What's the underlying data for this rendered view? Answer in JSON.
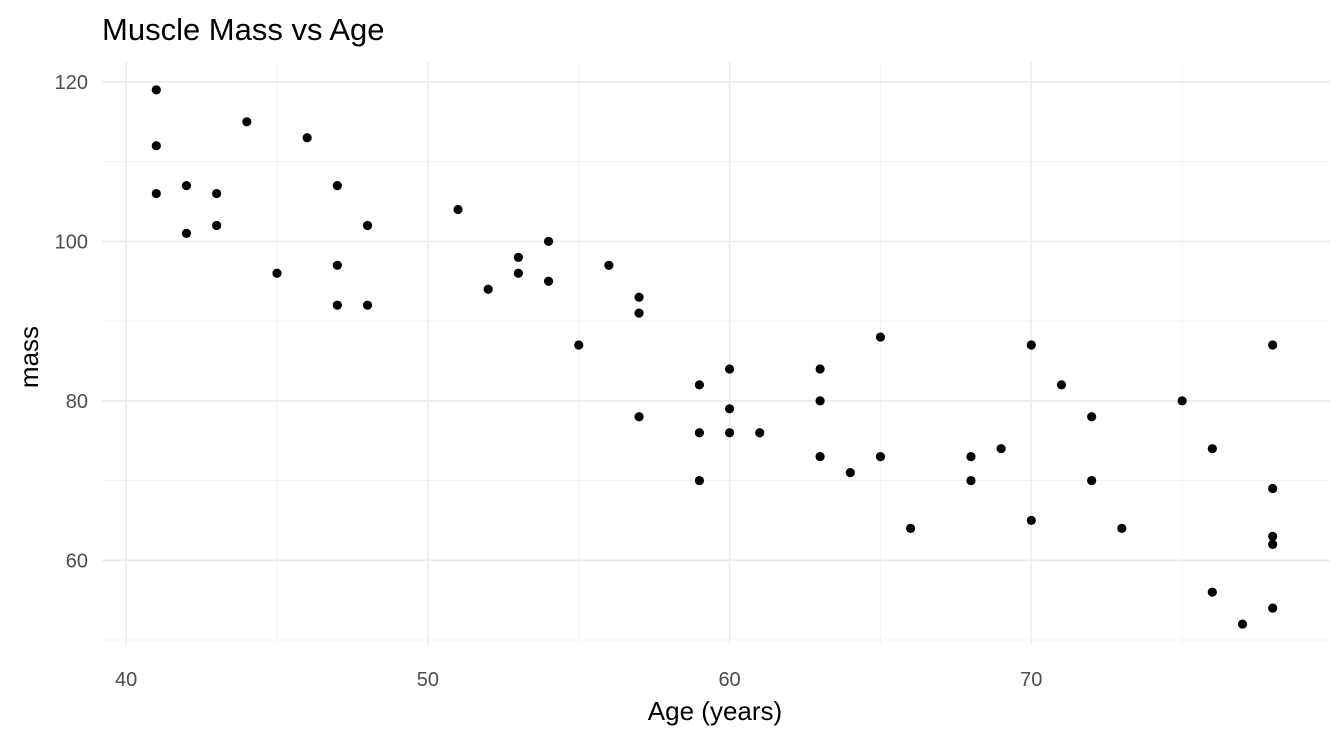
{
  "chart_data": {
    "type": "scatter",
    "title": "Muscle Mass vs Age",
    "xlabel": "Age (years)",
    "ylabel": "mass",
    "xlim": [
      39.2,
      79.9
    ],
    "ylim": [
      49.5,
      122.5
    ],
    "x_ticks": [
      40,
      50,
      60,
      70
    ],
    "x_minor": [
      45,
      55,
      65,
      75
    ],
    "y_ticks": [
      60,
      80,
      100,
      120
    ],
    "y_minor": [
      50,
      70,
      90,
      110
    ],
    "grid": true,
    "point_color": "#000000",
    "points": [
      {
        "x": 41,
        "y": 119
      },
      {
        "x": 41,
        "y": 112
      },
      {
        "x": 41,
        "y": 106
      },
      {
        "x": 42,
        "y": 107
      },
      {
        "x": 42,
        "y": 101
      },
      {
        "x": 43,
        "y": 106
      },
      {
        "x": 43,
        "y": 102
      },
      {
        "x": 44,
        "y": 115
      },
      {
        "x": 45,
        "y": 96
      },
      {
        "x": 46,
        "y": 113
      },
      {
        "x": 47,
        "y": 107
      },
      {
        "x": 47,
        "y": 97
      },
      {
        "x": 47,
        "y": 92
      },
      {
        "x": 48,
        "y": 102
      },
      {
        "x": 48,
        "y": 92
      },
      {
        "x": 51,
        "y": 104
      },
      {
        "x": 52,
        "y": 94
      },
      {
        "x": 53,
        "y": 98
      },
      {
        "x": 53,
        "y": 96
      },
      {
        "x": 54,
        "y": 100
      },
      {
        "x": 54,
        "y": 95
      },
      {
        "x": 55,
        "y": 87
      },
      {
        "x": 56,
        "y": 97
      },
      {
        "x": 57,
        "y": 93
      },
      {
        "x": 57,
        "y": 91
      },
      {
        "x": 57,
        "y": 78
      },
      {
        "x": 59,
        "y": 82
      },
      {
        "x": 59,
        "y": 76
      },
      {
        "x": 59,
        "y": 70
      },
      {
        "x": 60,
        "y": 84
      },
      {
        "x": 60,
        "y": 79
      },
      {
        "x": 60,
        "y": 76
      },
      {
        "x": 61,
        "y": 76
      },
      {
        "x": 63,
        "y": 84
      },
      {
        "x": 63,
        "y": 80
      },
      {
        "x": 63,
        "y": 73
      },
      {
        "x": 64,
        "y": 71
      },
      {
        "x": 65,
        "y": 88
      },
      {
        "x": 65,
        "y": 73
      },
      {
        "x": 66,
        "y": 64
      },
      {
        "x": 68,
        "y": 73
      },
      {
        "x": 68,
        "y": 70
      },
      {
        "x": 69,
        "y": 74
      },
      {
        "x": 70,
        "y": 87
      },
      {
        "x": 70,
        "y": 65
      },
      {
        "x": 71,
        "y": 82
      },
      {
        "x": 72,
        "y": 78
      },
      {
        "x": 72,
        "y": 70
      },
      {
        "x": 73,
        "y": 64
      },
      {
        "x": 75,
        "y": 80
      },
      {
        "x": 76,
        "y": 74
      },
      {
        "x": 76,
        "y": 56
      },
      {
        "x": 77,
        "y": 52
      },
      {
        "x": 78,
        "y": 87
      },
      {
        "x": 78,
        "y": 69
      },
      {
        "x": 78,
        "y": 63
      },
      {
        "x": 78,
        "y": 62
      },
      {
        "x": 78,
        "y": 54
      }
    ]
  }
}
